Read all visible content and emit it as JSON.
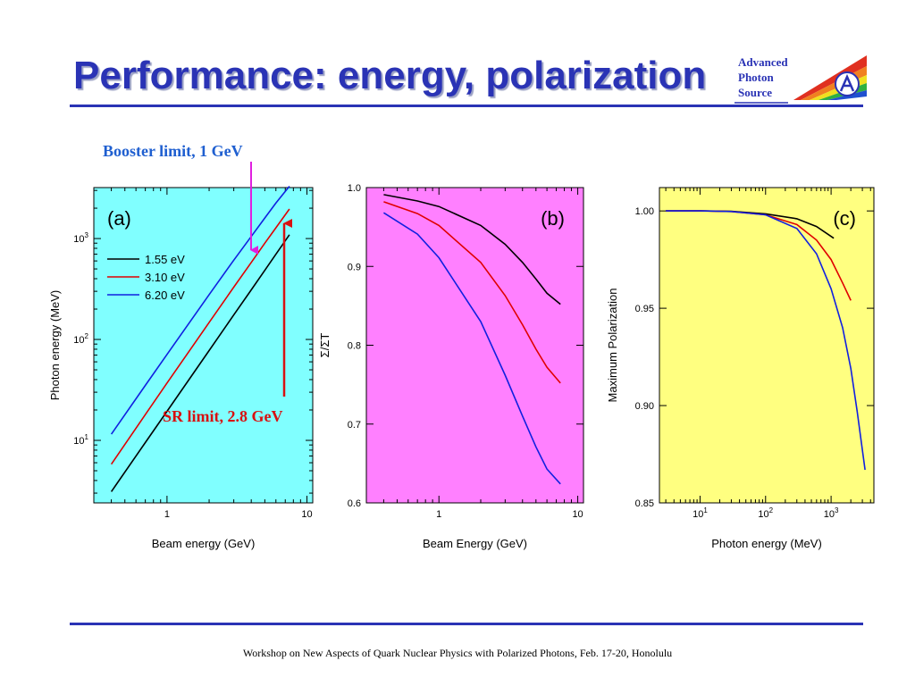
{
  "slide": {
    "title": "Performance: energy, polarization",
    "footer": "Workshop on New Aspects of Quark Nuclear Physics with Polarized Photons, Feb. 17-20, Honolulu",
    "logo": {
      "line1": "Advanced",
      "line2": "Photon",
      "line3": "Source"
    }
  },
  "annotations": {
    "booster": "Booster limit, 1 GeV",
    "sr": "SR limit, 2.8 GeV"
  },
  "colors": {
    "title": "#2a33b5",
    "booster_arrow": "#e020e0",
    "sr_arrow": "#d81010",
    "annotation_blue": "#1f5fd0"
  },
  "chart_data": [
    {
      "type": "line",
      "panel_label": "(a)",
      "xlabel": "Beam energy (GeV)",
      "ylabel": "Photon energy (MeV)",
      "x_scale": "log",
      "y_scale": "log",
      "xlim": [
        0.3,
        11
      ],
      "ylim": [
        2.4,
        3200
      ],
      "xticks": [
        {
          "v": 1,
          "label": "1"
        },
        {
          "v": 10,
          "label": "10"
        }
      ],
      "yticks": [
        {
          "v": 10,
          "base": "10",
          "exp": "1"
        },
        {
          "v": 100,
          "base": "10",
          "exp": "2"
        },
        {
          "v": 1000,
          "base": "10",
          "exp": "3"
        }
      ],
      "background": "#80ffff",
      "legend": "upper-left",
      "series": [
        {
          "name": "1.55 eV",
          "color": "#000000",
          "x": [
            0.4,
            0.7,
            1,
            2,
            3,
            4,
            5,
            6,
            7.5
          ],
          "y": [
            3.1,
            9.5,
            19.4,
            77.6,
            175,
            310,
            485,
            700,
            1090
          ]
        },
        {
          "name": "3.10 eV",
          "color": "#e00000",
          "x": [
            0.4,
            0.7,
            1,
            2,
            3,
            4,
            5,
            6,
            7.5
          ],
          "y": [
            5.8,
            18,
            37,
            147,
            330,
            580,
            900,
            1280,
            1960
          ]
        },
        {
          "name": "6.20 eV",
          "color": "#1020e0",
          "x": [
            0.4,
            0.7,
            1,
            2,
            3,
            4,
            5,
            6,
            7.5
          ],
          "y": [
            11.5,
            35,
            71,
            278,
            610,
            1050,
            1600,
            2250,
            3300
          ]
        }
      ]
    },
    {
      "type": "line",
      "panel_label": "(b)",
      "xlabel": "Beam Energy (GeV)",
      "ylabel": "Σ/ΣT",
      "x_scale": "log",
      "y_scale": "linear",
      "xlim": [
        0.3,
        11
      ],
      "ylim": [
        0.6,
        1.0
      ],
      "xticks": [
        {
          "v": 1,
          "label": "1"
        },
        {
          "v": 10,
          "label": "10"
        }
      ],
      "yticks": [
        {
          "v": 0.6,
          "label": "0.6"
        },
        {
          "v": 0.7,
          "label": "0.7"
        },
        {
          "v": 0.8,
          "label": "0.8"
        },
        {
          "v": 0.9,
          "label": "0.9"
        },
        {
          "v": 1.0,
          "label": "1.0"
        }
      ],
      "background": "#ff80ff",
      "series": [
        {
          "name": "1.55 eV",
          "color": "#000000",
          "x": [
            0.4,
            0.7,
            1,
            2,
            3,
            4,
            5,
            6,
            7.5
          ],
          "y": [
            0.991,
            0.983,
            0.976,
            0.952,
            0.928,
            0.905,
            0.884,
            0.866,
            0.852
          ]
        },
        {
          "name": "3.10 eV",
          "color": "#e00000",
          "x": [
            0.4,
            0.7,
            1,
            2,
            3,
            4,
            5,
            6,
            7.5
          ],
          "y": [
            0.982,
            0.967,
            0.952,
            0.905,
            0.863,
            0.826,
            0.795,
            0.772,
            0.752
          ]
        },
        {
          "name": "6.20 eV",
          "color": "#1020e0",
          "x": [
            0.4,
            0.7,
            1,
            2,
            3,
            4,
            5,
            6,
            7.5
          ],
          "y": [
            0.968,
            0.941,
            0.911,
            0.83,
            0.762,
            0.71,
            0.671,
            0.643,
            0.624
          ]
        }
      ]
    },
    {
      "type": "line",
      "panel_label": "(c)",
      "xlabel": "Photon energy (MeV)",
      "ylabel": "Maximum Polarization",
      "x_scale": "log",
      "y_scale": "linear",
      "xlim": [
        2.4,
        4500
      ],
      "ylim": [
        0.85,
        1.012
      ],
      "xticks": [
        {
          "v": 10,
          "base": "10",
          "exp": "1"
        },
        {
          "v": 100,
          "base": "10",
          "exp": "2"
        },
        {
          "v": 1000,
          "base": "10",
          "exp": "3"
        }
      ],
      "yticks": [
        {
          "v": 0.85,
          "label": "0.85"
        },
        {
          "v": 0.9,
          "label": "0.90"
        },
        {
          "v": 0.95,
          "label": "0.95"
        },
        {
          "v": 1.0,
          "label": "1.00"
        }
      ],
      "background": "#ffff80",
      "series": [
        {
          "name": "1.55 eV",
          "color": "#000000",
          "x": [
            3,
            10,
            30,
            100,
            300,
            600,
            1100
          ],
          "y": [
            1.0,
            1.0,
            0.9998,
            0.9985,
            0.996,
            0.992,
            0.986
          ]
        },
        {
          "name": "3.10 eV",
          "color": "#e00000",
          "x": [
            3,
            10,
            30,
            100,
            300,
            600,
            1000,
            1500,
            2000
          ],
          "y": [
            1.0,
            1.0,
            0.9997,
            0.998,
            0.993,
            0.985,
            0.975,
            0.963,
            0.954
          ]
        },
        {
          "name": "6.20 eV",
          "color": "#1020e0",
          "x": [
            3,
            10,
            30,
            100,
            300,
            600,
            1000,
            1500,
            2000,
            2500,
            3300
          ],
          "y": [
            1.0,
            1.0,
            0.9997,
            0.998,
            0.991,
            0.978,
            0.96,
            0.94,
            0.919,
            0.897,
            0.867
          ]
        }
      ]
    }
  ]
}
